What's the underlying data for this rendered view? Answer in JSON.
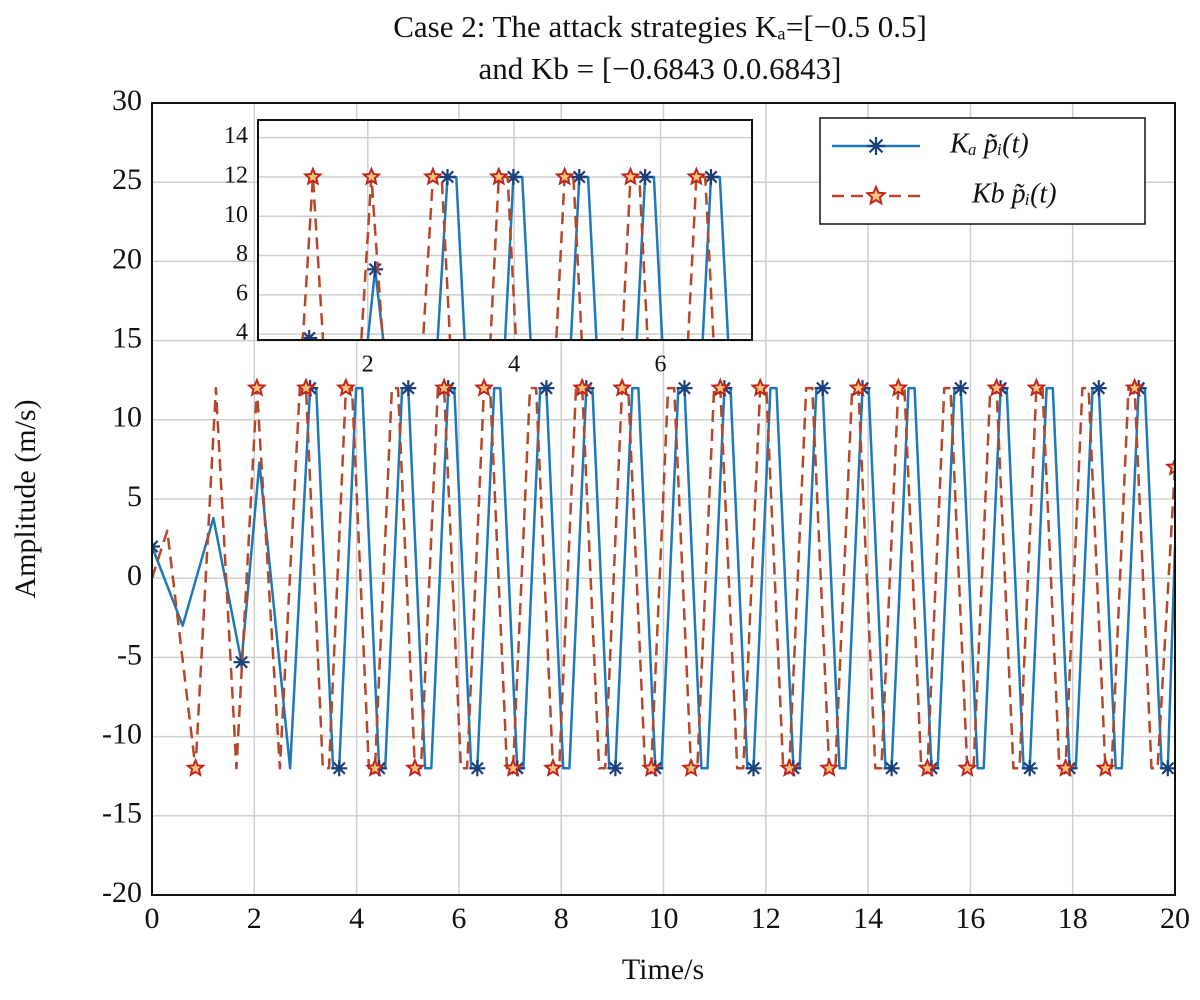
{
  "chart_data": {
    "type": "line",
    "title": [
      "Case 2: The attack strategies Kₐ=[−0.5 0.5]",
      "and Kb = [−0.6843 0.0.6843]"
    ],
    "x_label": "Time/s",
    "y_label": "Amplitude (m/s)",
    "xlim": [
      0,
      20
    ],
    "ylim": [
      -20,
      30
    ],
    "xticks": [
      0,
      2,
      4,
      6,
      8,
      10,
      12,
      14,
      16,
      18,
      20
    ],
    "yticks": [
      30,
      25,
      20,
      15,
      10,
      5,
      0,
      -5,
      -10,
      -15,
      -20
    ],
    "grid": true,
    "legend": "upper right",
    "series": [
      {
        "name": "Kₐ p̃ᵢ(t)",
        "color": "#1f78b8",
        "x": [
          0,
          0.6,
          1.2,
          1.75,
          2.1,
          2.7,
          3.09,
          3.21,
          3.54,
          3.66,
          3.99,
          4.11,
          4.44,
          4.56,
          4.89,
          5.01,
          5.34,
          5.46,
          5.79,
          5.91,
          6.24,
          6.36,
          6.69,
          6.81,
          7.14,
          7.26,
          7.59,
          7.71,
          8.04,
          8.16,
          8.49,
          8.61,
          8.94,
          9.06,
          9.39,
          9.51,
          9.84,
          9.96,
          10.29,
          10.41,
          10.74,
          10.86,
          11.19,
          11.31,
          11.64,
          11.76,
          12.09,
          12.21,
          12.54,
          12.66,
          12.99,
          13.11,
          13.44,
          13.56,
          13.89,
          14.01,
          14.34,
          14.46,
          14.79,
          14.91,
          15.24,
          15.36,
          15.69,
          15.81,
          16.14,
          16.26,
          16.59,
          16.71,
          17.04,
          17.16,
          17.49,
          17.61,
          17.94,
          18.06,
          18.39,
          18.51,
          18.84,
          18.96,
          19.29,
          19.41,
          19.74,
          19.86,
          20
        ],
        "values": [
          2,
          -3,
          3.8,
          -5.3,
          7.3,
          -12,
          12,
          12,
          -12,
          -12,
          12,
          12,
          -12,
          -12,
          12,
          12,
          -12,
          -12,
          12,
          12,
          -12,
          -12,
          12,
          12,
          -12,
          -12,
          12,
          12,
          -12,
          -12,
          12,
          12,
          -12,
          -12,
          12,
          12,
          -12,
          -12,
          12,
          12,
          -12,
          -12,
          12,
          12,
          -12,
          -12,
          12,
          12,
          -12,
          -12,
          12,
          12,
          -12,
          -12,
          12,
          12,
          -12,
          -12,
          12,
          12,
          -12,
          -12,
          12,
          12,
          -12,
          -12,
          12,
          12,
          -12,
          -12,
          12,
          12,
          -12,
          -12,
          12,
          12,
          -12,
          -12,
          12,
          12,
          -12,
          -12,
          2
        ]
      },
      {
        "name": "Kb p̃ᵢ(t)",
        "color": "#b5472a",
        "x": [
          0,
          0.3,
          0.85,
          1.25,
          1.65,
          2.05,
          2.5,
          2.89,
          3.01,
          3.34,
          3.46,
          3.79,
          3.91,
          4.24,
          4.36,
          4.69,
          4.81,
          5.14,
          5.26,
          5.59,
          5.71,
          6.04,
          6.16,
          6.49,
          6.61,
          6.94,
          7.06,
          7.39,
          7.51,
          7.84,
          7.96,
          8.29,
          8.41,
          8.74,
          8.86,
          9.19,
          9.31,
          9.64,
          9.76,
          10.09,
          10.21,
          10.54,
          10.66,
          10.99,
          11.11,
          11.44,
          11.56,
          11.89,
          12.01,
          12.34,
          12.46,
          12.79,
          12.91,
          13.24,
          13.36,
          13.69,
          13.81,
          14.14,
          14.26,
          14.59,
          14.71,
          15.04,
          15.16,
          15.49,
          15.61,
          15.94,
          16.06,
          16.39,
          16.51,
          16.84,
          16.96,
          17.29,
          17.41,
          17.74,
          17.86,
          18.19,
          18.31,
          18.64,
          18.76,
          19.09,
          19.21,
          19.54,
          19.66,
          20
        ],
        "values": [
          0,
          3,
          -12,
          12,
          -12,
          12,
          -12,
          12,
          12,
          -12,
          -12,
          12,
          12,
          -12,
          -12,
          12,
          12,
          -12,
          -12,
          12,
          12,
          -12,
          -12,
          12,
          12,
          -12,
          -12,
          12,
          12,
          -12,
          -12,
          12,
          12,
          -12,
          -12,
          12,
          12,
          -12,
          -12,
          12,
          12,
          -12,
          -12,
          12,
          12,
          -12,
          -12,
          12,
          12,
          -12,
          -12,
          12,
          12,
          -12,
          -12,
          12,
          12,
          -12,
          -12,
          12,
          12,
          -12,
          -12,
          12,
          12,
          -12,
          -12,
          12,
          12,
          -12,
          -12,
          12,
          12,
          -12,
          -12,
          12,
          12,
          -12,
          -12,
          12,
          12,
          -12,
          -12,
          7
        ]
      }
    ],
    "inset": {
      "xlim": [
        0.5,
        7.25
      ],
      "ylim": [
        3.7,
        14.9
      ],
      "xticks": [
        2,
        4,
        6
      ],
      "yticks": [
        14,
        12,
        10,
        8,
        6,
        4
      ]
    }
  }
}
